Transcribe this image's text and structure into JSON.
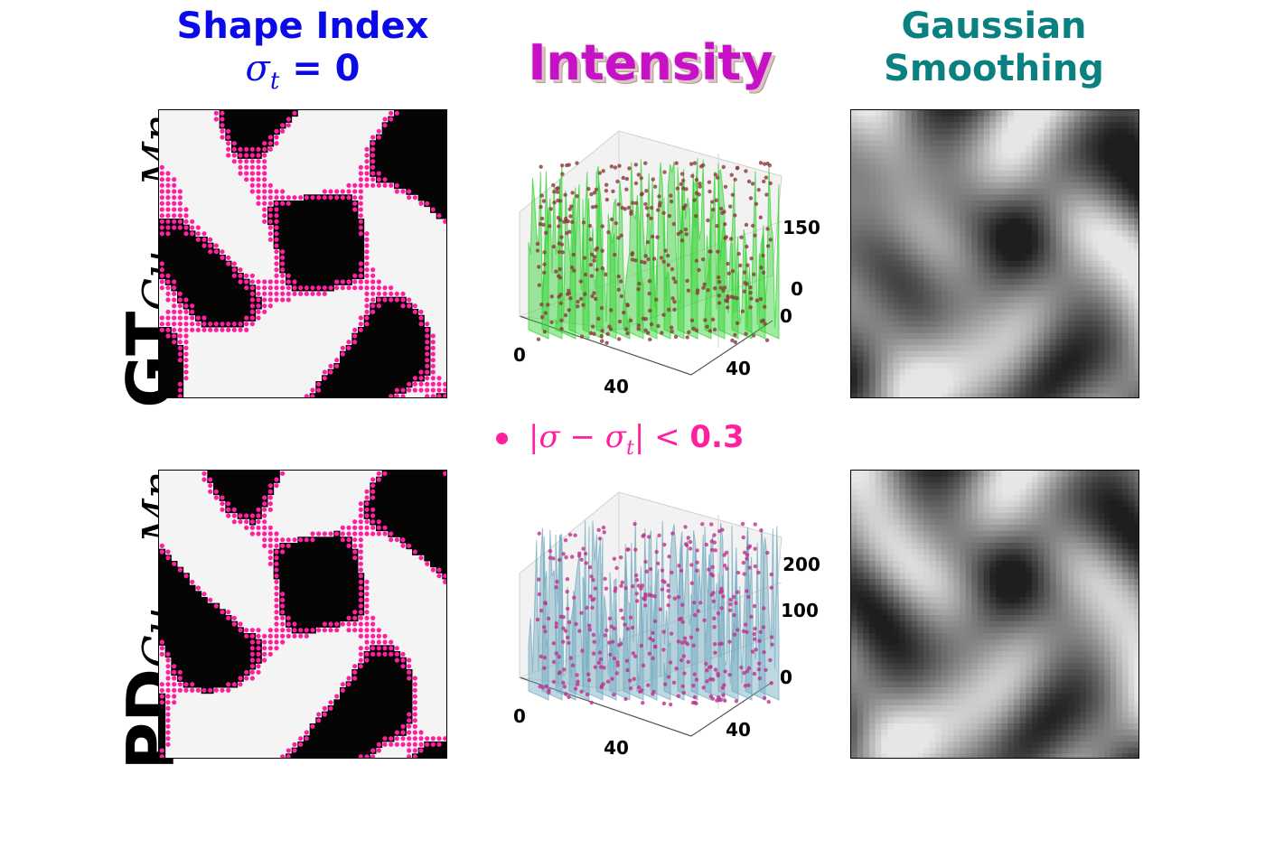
{
  "titles": {
    "shape_index": "Shape Index",
    "shape_sigma_sym": "σ",
    "shape_sigma_sub": "t",
    "shape_sigma_val": " = 0",
    "intensity": "Intensity",
    "gaussian_line1": "Gaussian",
    "gaussian_line2": "Smoothing"
  },
  "row_labels": {
    "gt_main": "GT",
    "gt_sub": "Cu − Mn",
    "pd_main": "PD",
    "pd_sub": "Cu − Mn"
  },
  "legend": {
    "prefix": "|σ − σ",
    "sub": "t",
    "suffix": "| < ",
    "value": "0.3",
    "marker_color": "#ff1f9f"
  },
  "colors": {
    "shape_title": "#0a0ae8",
    "intensity_title": "#c711c7",
    "gaussian_title": "#0b8080",
    "gt_surface": "#2fd12f",
    "pd_surface": "#6fa8bf",
    "gt_points": "#8b3a3a",
    "pd_points": "#c0308f"
  },
  "chart_data": [
    {
      "type": "scatter",
      "title": "Shape Index σt = 0",
      "panel": "GT Cu−Mn",
      "description_marker": "points where |σ − σt| < 0.3 overlaid on grayscale image",
      "marker_color": "#ff1f9f"
    },
    {
      "type": "area",
      "panel": "GT Cu−Mn intensity surface",
      "x_ticks": [
        "0",
        "40"
      ],
      "y_ticks": [
        "0",
        "40"
      ],
      "z_ticks": [
        "0",
        "150"
      ],
      "surface_color": "#2fd12f",
      "point_color": "#8b3a3a"
    },
    {
      "type": "area",
      "panel": "PD Cu−Mn intensity surface",
      "x_ticks": [
        "0",
        "40"
      ],
      "y_ticks": [
        "0",
        "40"
      ],
      "z_ticks": [
        "0",
        "100",
        "200"
      ],
      "surface_color": "#6fa8bf",
      "point_color": "#c0308f"
    },
    {
      "type": "heatmap",
      "title": "Gaussian Smoothing",
      "panels": [
        "GT Cu−Mn",
        "PD Cu−Mn"
      ],
      "colormap": "gray"
    }
  ]
}
